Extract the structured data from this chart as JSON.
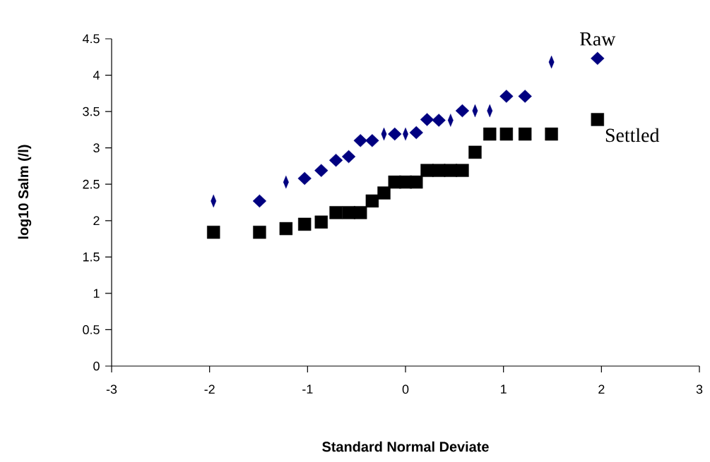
{
  "chart_data": {
    "type": "scatter",
    "xlabel": "Standard Normal Deviate",
    "ylabel": "log10 Salm (/l)",
    "xlim": [
      -3,
      3
    ],
    "xticks": [
      -3,
      -2,
      -1,
      0,
      1,
      2,
      3
    ],
    "ylim": [
      0,
      4.5
    ],
    "yticks": [
      0,
      0.5,
      1,
      1.5,
      2,
      2.5,
      3,
      3.5,
      4,
      4.5
    ],
    "grid": false,
    "legend": false,
    "series": [
      {
        "name": "Raw",
        "color": "#000080",
        "marker": "diamond",
        "x": [
          -1.49,
          -1.03,
          -0.86,
          -0.71,
          -0.58,
          -0.46,
          -0.34,
          -0.11,
          0.11,
          0.22,
          0.34,
          0.58,
          1.03,
          1.22,
          1.96
        ],
        "values": [
          2.27,
          2.58,
          2.69,
          2.83,
          2.88,
          3.1,
          3.1,
          3.19,
          3.21,
          3.39,
          3.38,
          3.51,
          3.71,
          3.71,
          4.23
        ]
      },
      {
        "color": "#000080",
        "marker": "diamond",
        "x": [
          -1.96,
          -1.22,
          -0.22,
          0,
          0.46,
          0.71,
          0.86,
          1.49
        ],
        "values": [
          2.27,
          2.53,
          3.19,
          3.19,
          3.38,
          3.51,
          3.51,
          4.18
        ]
      },
      {
        "name": "Settled",
        "color": "#000000",
        "marker": "square",
        "x": [
          -1.96,
          -1.49,
          -1.22,
          -1.03,
          -0.86,
          -0.71,
          -0.58,
          -0.46,
          -0.34,
          -0.22,
          -0.11,
          0,
          0.11,
          0.22,
          0.34,
          0.46,
          0.58,
          0.71,
          0.86,
          1.03,
          1.22,
          1.49,
          1.96
        ],
        "values": [
          1.84,
          1.84,
          1.89,
          1.95,
          1.98,
          2.11,
          2.11,
          2.11,
          2.27,
          2.38,
          2.53,
          2.53,
          2.53,
          2.69,
          2.69,
          2.69,
          2.69,
          2.94,
          3.19,
          3.19,
          3.19,
          3.19,
          3.39
        ]
      }
    ]
  }
}
